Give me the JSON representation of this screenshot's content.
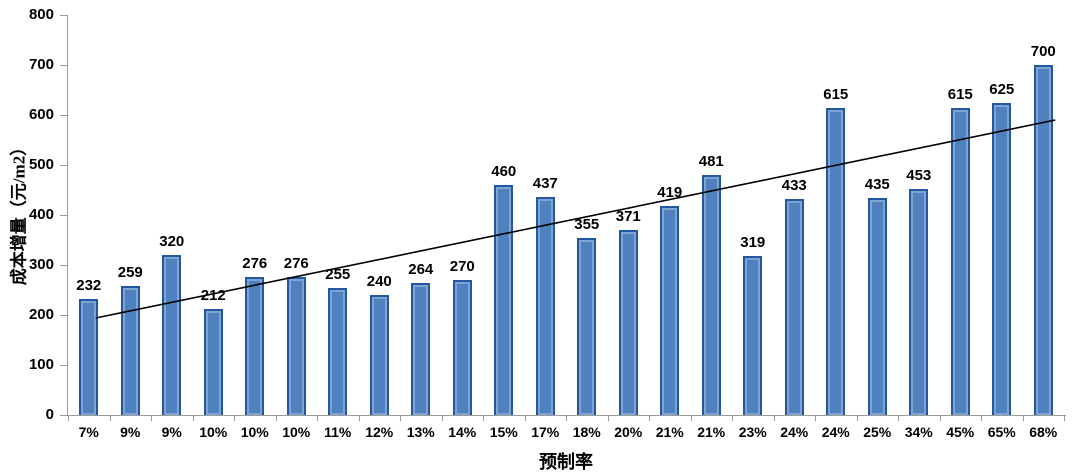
{
  "chart_data": {
    "type": "bar",
    "title": "",
    "xlabel": "预制率",
    "ylabel": "成本增量（元/m2）",
    "categories": [
      "7%",
      "9%",
      "9%",
      "10%",
      "10%",
      "10%",
      "11%",
      "12%",
      "13%",
      "14%",
      "15%",
      "17%",
      "18%",
      "20%",
      "21%",
      "21%",
      "23%",
      "24%",
      "24%",
      "25%",
      "34%",
      "45%",
      "65%",
      "68%"
    ],
    "values": [
      232,
      259,
      320,
      212,
      276,
      276,
      255,
      240,
      264,
      270,
      460,
      437,
      355,
      371,
      419,
      481,
      319,
      433,
      615,
      435,
      453,
      615,
      625,
      700
    ],
    "ylim": [
      0,
      800
    ],
    "ytick_interval": 100,
    "yticks": [
      0,
      100,
      200,
      300,
      400,
      500,
      600,
      700,
      800
    ],
    "grid": false,
    "legend": "none",
    "data_labels": true,
    "bar_fill_color": "#4e81bd",
    "bar_border_color": "#2257a4",
    "axis_color": "#9b9b9b",
    "text_color": "#000000",
    "trendline": {
      "type": "linear",
      "start_value": 194,
      "end_value": 590,
      "color": "#000000"
    }
  }
}
